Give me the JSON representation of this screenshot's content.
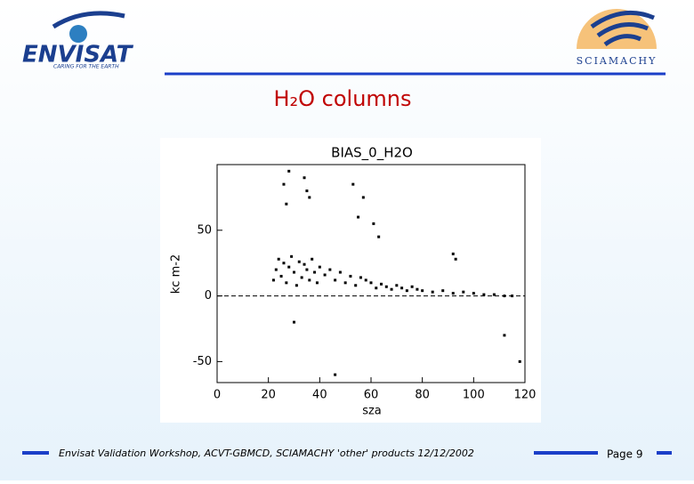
{
  "slide": {
    "envisat_logo": "ENVISAT",
    "envisat_tagline": "CARING FOR THE EARTH",
    "sciamachy_logo": "SCIAMACHY",
    "heading": "H₂O columns",
    "footer": "Envisat Validation Workshop, ACVT-GBMCD, SCIAMACHY 'other' products 12/12/2002",
    "page": "Page 9"
  },
  "chart_data": {
    "type": "scatter",
    "title": "BIAS_0_H2O",
    "x_label": "sza",
    "y_label": "kc m-2",
    "color": "#000000",
    "x": [
      22,
      23,
      24,
      25,
      26,
      27,
      28,
      29,
      30,
      31,
      32,
      33,
      34,
      35,
      36,
      37,
      38,
      39,
      40,
      42,
      44,
      46,
      48,
      50,
      52,
      54,
      56,
      58,
      60,
      62,
      64,
      66,
      68,
      70,
      72,
      74,
      76,
      78,
      80,
      84,
      88,
      92,
      96,
      100,
      104,
      108,
      112,
      115,
      26,
      27,
      28,
      34,
      35,
      36,
      53,
      55,
      57,
      61,
      63,
      92,
      93,
      30,
      46,
      112,
      118
    ],
    "values": [
      12,
      20,
      28,
      15,
      25,
      10,
      22,
      30,
      18,
      8,
      26,
      14,
      24,
      20,
      12,
      28,
      18,
      10,
      22,
      16,
      20,
      12,
      18,
      10,
      15,
      8,
      14,
      12,
      10,
      6,
      9,
      7,
      5,
      8,
      6,
      4,
      7,
      5,
      4,
      3,
      4,
      2,
      3,
      2,
      1,
      1,
      0,
      0,
      85,
      70,
      95,
      90,
      80,
      75,
      85,
      60,
      75,
      55,
      45,
      32,
      28,
      -20,
      -60,
      -30,
      -50
    ],
    "reference_line": 0,
    "xlim": [
      0,
      120
    ],
    "xticks": [
      0,
      20,
      40,
      60,
      80,
      100,
      120
    ],
    "ylim": [
      -66,
      100
    ],
    "yticks": [
      -50,
      0,
      50
    ]
  }
}
